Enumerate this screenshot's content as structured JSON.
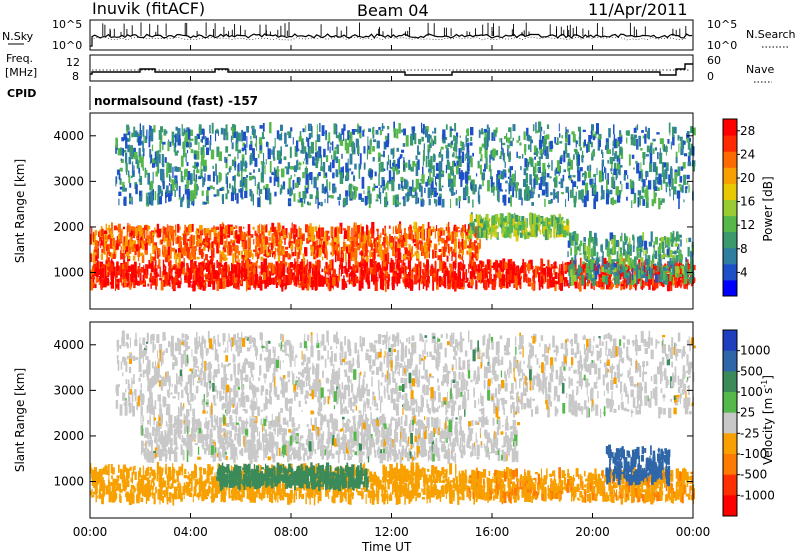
{
  "header": {
    "station": "Inuvik (fitACF)",
    "beam": "Beam 04",
    "date": "11/Apr/2011"
  },
  "panels": {
    "nsky": {
      "left_label": "N.Sky",
      "right_label": "N.Search",
      "left_ticks": [
        "10^5",
        "10^0"
      ],
      "right_ticks": [
        "10^5",
        "10^0"
      ]
    },
    "freq": {
      "left_label_top": "Freq.",
      "left_label_bottom": "[MHz]",
      "left_ticks": [
        "12",
        "8"
      ],
      "right_label": "Nave",
      "right_ticks": [
        "60",
        "0"
      ]
    },
    "cpid": {
      "label": "CPID",
      "text": "normalsound (fast) -157"
    }
  },
  "chart_data": [
    {
      "type": "heatmap",
      "title": "",
      "xlabel": "",
      "ylabel": "Slant Range [km]",
      "x_ticks": [
        "00:00",
        "04:00",
        "08:00",
        "12:00",
        "16:00",
        "20:00",
        "00:00"
      ],
      "xlim_hours": [
        0,
        24
      ],
      "ylim": [
        200,
        4500
      ],
      "y_ticks": [
        1000,
        2000,
        3000,
        4000
      ],
      "colorbar": {
        "label": "Power [dB]",
        "ticks": [
          4,
          8,
          12,
          16,
          20,
          24,
          28
        ],
        "range": [
          0,
          30
        ],
        "colors": [
          "#0000ff",
          "#1d50c8",
          "#2f7ea0",
          "#3a9a6e",
          "#56b84a",
          "#99cc33",
          "#e8c800",
          "#f8a000",
          "#ff6a00",
          "#ff2a00",
          "#ff0000"
        ]
      },
      "bands": [
        {
          "range_km": [
            700,
            1200
          ],
          "x_hours": [
            0,
            24
          ],
          "power_db": 28
        },
        {
          "range_km": [
            1300,
            2000
          ],
          "x_hours": [
            0,
            15.5
          ],
          "power_db": 24
        },
        {
          "range_km": [
            1800,
            2200
          ],
          "x_hours": [
            15,
            19
          ],
          "power_db": 14
        },
        {
          "range_km": [
            800,
            1800
          ],
          "x_hours": [
            19,
            24
          ],
          "power_db": 10
        },
        {
          "range_km": [
            2500,
            4200
          ],
          "x_hours": [
            1,
            24
          ],
          "power_db": 8
        }
      ]
    },
    {
      "type": "heatmap",
      "title": "",
      "xlabel": "Time UT",
      "ylabel": "Slant Range [km]",
      "x_ticks": [
        "00:00",
        "04:00",
        "08:00",
        "12:00",
        "16:00",
        "20:00",
        "00:00"
      ],
      "xlim_hours": [
        0,
        24
      ],
      "ylim": [
        200,
        4500
      ],
      "y_ticks": [
        1000,
        2000,
        3000,
        4000
      ],
      "colorbar": {
        "label": "Velocity [m s^-1]",
        "ticks": [
          "1000",
          "500",
          "100",
          "25",
          "-25",
          "-100",
          "-500",
          "-1000"
        ],
        "colors": [
          "#1f3fbf",
          "#2e66a8",
          "#3a8a5a",
          "#55b84a",
          "#c8c8c8",
          "#f7a000",
          "#ff7a00",
          "#ff3000",
          "#ff0000"
        ]
      },
      "bands": [
        {
          "range_km": [
            600,
            1300
          ],
          "x_hours": [
            0,
            15
          ],
          "velocity": -100
        },
        {
          "range_km": [
            900,
            1300
          ],
          "x_hours": [
            5,
            11
          ],
          "velocity": 200
        },
        {
          "range_km": [
            1500,
            2400
          ],
          "x_hours": [
            2,
            17
          ],
          "velocity": 0
        },
        {
          "range_km": [
            600,
            1200
          ],
          "x_hours": [
            15,
            24
          ],
          "velocity": -150
        },
        {
          "range_km": [
            1000,
            1700
          ],
          "x_hours": [
            20.5,
            23
          ],
          "velocity": 600
        },
        {
          "range_km": [
            2500,
            4200
          ],
          "x_hours": [
            1,
            24
          ],
          "velocity": 0
        }
      ]
    }
  ]
}
